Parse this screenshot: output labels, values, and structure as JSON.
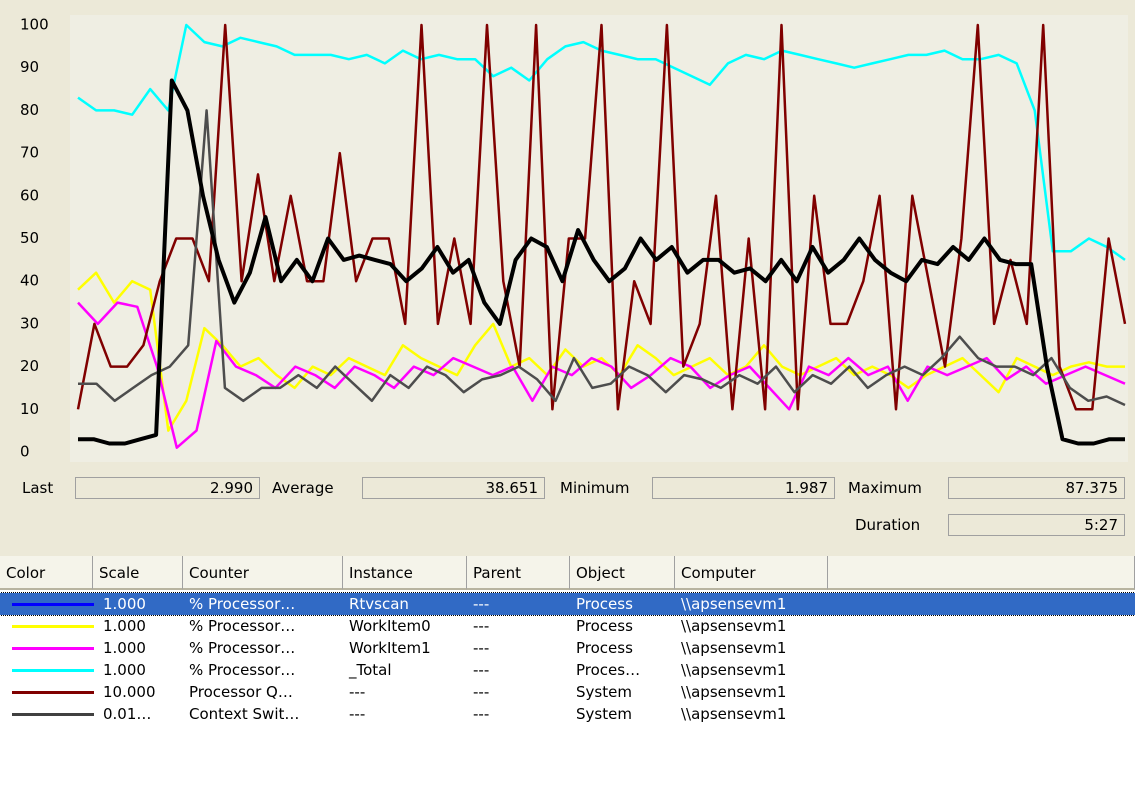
{
  "chart_data": {
    "type": "line",
    "ylim": [
      0,
      100
    ],
    "yticks": [
      0,
      10,
      20,
      30,
      40,
      50,
      60,
      70,
      80,
      90,
      100
    ],
    "series": [
      {
        "color": "#00ffff",
        "values": [
          83,
          80,
          80,
          79,
          85,
          80,
          100,
          96,
          95,
          97,
          96,
          95,
          93,
          93,
          93,
          92,
          93,
          91,
          94,
          92,
          93,
          92,
          92,
          88,
          90,
          87,
          92,
          95,
          96,
          94,
          93,
          92,
          92,
          90,
          88,
          86,
          91,
          93,
          92,
          94,
          93,
          92,
          91,
          90,
          91,
          92,
          93,
          93,
          94,
          92,
          92,
          93,
          91,
          80,
          47,
          47,
          50,
          48,
          45
        ]
      },
      {
        "color": "#ffff00",
        "values": [
          38,
          42,
          35,
          40,
          38,
          5,
          12,
          29,
          25,
          20,
          22,
          18,
          15,
          20,
          18,
          22,
          20,
          18,
          25,
          22,
          20,
          18,
          25,
          30,
          20,
          22,
          18,
          24,
          20,
          22,
          18,
          25,
          22,
          18,
          20,
          22,
          18,
          20,
          25,
          20,
          18,
          20,
          22,
          18,
          20,
          18,
          15,
          18,
          20,
          22,
          18,
          14,
          22,
          20,
          18,
          20,
          21,
          20,
          20
        ]
      },
      {
        "color": "#ff00ff",
        "values": [
          35,
          30,
          35,
          34,
          20,
          1,
          5,
          26,
          20,
          18,
          15,
          20,
          18,
          15,
          20,
          18,
          15,
          20,
          18,
          22,
          20,
          18,
          20,
          12,
          20,
          18,
          22,
          20,
          15,
          18,
          22,
          20,
          15,
          18,
          20,
          15,
          10,
          20,
          18,
          22,
          18,
          20,
          12,
          20,
          18,
          20,
          22,
          17,
          20,
          16,
          18,
          20,
          18,
          16
        ]
      },
      {
        "color": "#800000",
        "values": [
          10,
          30,
          20,
          20,
          25,
          40,
          50,
          50,
          40,
          100,
          40,
          65,
          40,
          60,
          40,
          40,
          70,
          40,
          50,
          50,
          30,
          100,
          30,
          50,
          30,
          100,
          40,
          20,
          100,
          10,
          50,
          50,
          100,
          10,
          40,
          30,
          100,
          20,
          30,
          60,
          10,
          50,
          10,
          100,
          10,
          60,
          30,
          30,
          40,
          60,
          10,
          60,
          40,
          20,
          50,
          100,
          30,
          45,
          30,
          100,
          20,
          10,
          10,
          50,
          30
        ]
      },
      {
        "color": "#4d4d4d",
        "values": [
          16,
          16,
          12,
          15,
          18,
          20,
          25,
          80,
          15,
          12,
          15,
          15,
          18,
          15,
          20,
          16,
          12,
          18,
          15,
          20,
          18,
          14,
          17,
          18,
          20,
          17,
          12,
          22,
          15,
          16,
          20,
          18,
          14,
          18,
          17,
          15,
          18,
          16,
          20,
          14,
          18,
          16,
          20,
          15,
          18,
          20,
          18,
          22,
          27,
          22,
          20,
          20,
          18,
          22,
          15,
          12,
          13,
          11
        ]
      },
      {
        "color": "#000000",
        "values": [
          3,
          3,
          2,
          2,
          3,
          4,
          87,
          80,
          60,
          45,
          35,
          42,
          55,
          40,
          45,
          40,
          50,
          45,
          46,
          45,
          44,
          40,
          43,
          48,
          42,
          45,
          35,
          30,
          45,
          50,
          48,
          40,
          52,
          45,
          40,
          43,
          50,
          45,
          48,
          42,
          45,
          45,
          42,
          43,
          40,
          45,
          40,
          48,
          42,
          45,
          50,
          45,
          42,
          40,
          45,
          44,
          48,
          45,
          50,
          45,
          44,
          44,
          20,
          3,
          2,
          2,
          3,
          3
        ]
      }
    ]
  },
  "stats": {
    "last": {
      "label": "Last",
      "value": "2.990"
    },
    "average": {
      "label": "Average",
      "value": "38.651"
    },
    "minimum": {
      "label": "Minimum",
      "value": "1.987"
    },
    "maximum": {
      "label": "Maximum",
      "value": "87.375"
    },
    "duration": {
      "label": "Duration",
      "value": "5:27"
    }
  },
  "table": {
    "columns": [
      "Color",
      "Scale",
      "Counter",
      "Instance",
      "Parent",
      "Object",
      "Computer"
    ],
    "rows": [
      {
        "color": "#0000ff",
        "cells": [
          "1.000",
          "% Processor…",
          "Rtvscan",
          "---",
          "Process",
          "\\\\apsensevm1"
        ]
      },
      {
        "color": "#ffff00",
        "cells": [
          "1.000",
          "% Processor…",
          "WorkItem0",
          "---",
          "Process",
          "\\\\apsensevm1"
        ]
      },
      {
        "color": "#ff00ff",
        "cells": [
          "1.000",
          "% Processor…",
          "WorkItem1",
          "---",
          "Process",
          "\\\\apsensevm1"
        ]
      },
      {
        "color": "#00ffff",
        "cells": [
          "1.000",
          "% Processor…",
          "_Total",
          "---",
          "Proces…",
          "\\\\apsensevm1"
        ]
      },
      {
        "color": "#800000",
        "cells": [
          "10.000",
          "Processor Q…",
          "---",
          "---",
          "System",
          "\\\\apsensevm1"
        ]
      },
      {
        "color": "#404040",
        "cells": [
          "0.01…",
          "Context Swit…",
          "---",
          "---",
          "System",
          "\\\\apsensevm1"
        ]
      }
    ]
  }
}
